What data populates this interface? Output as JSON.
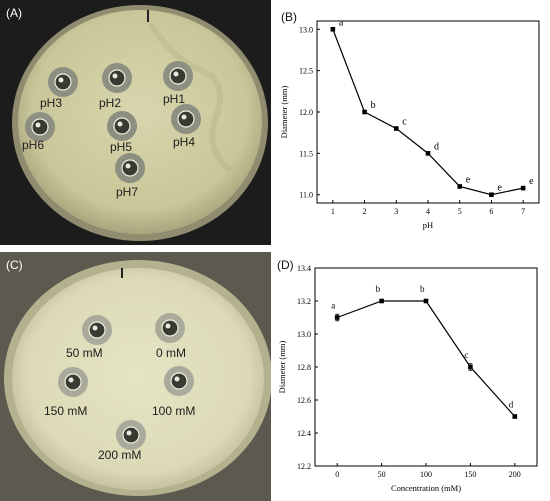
{
  "panels": {
    "a": {
      "label": "(A)",
      "wells": [
        "pH3",
        "pH2",
        "pH1",
        "pH6",
        "pH5",
        "pH4",
        "pH7"
      ]
    },
    "b": {
      "label": "(B)"
    },
    "c": {
      "label": "(C)",
      "wells": [
        "50 mM",
        "0 mM",
        "150 mM",
        "100 mM",
        "200 mM"
      ]
    },
    "d": {
      "label": "(D)"
    }
  },
  "chart_data": [
    {
      "type": "line",
      "panel": "B",
      "xlabel": "pH",
      "ylabel": "Diameter (mm)",
      "x": [
        1,
        2,
        3,
        4,
        5,
        6,
        7
      ],
      "series": [
        {
          "values": [
            13.0,
            12.0,
            11.8,
            11.5,
            11.1,
            11.0,
            11.08
          ]
        }
      ],
      "significance_letters": [
        "a",
        "b",
        "c",
        "d",
        "e",
        "e",
        "e"
      ],
      "xlim": [
        0.5,
        7.5
      ],
      "ylim": [
        10.9,
        13.1
      ],
      "xticks": [
        "1",
        "2",
        "3",
        "4",
        "5",
        "6",
        "7"
      ],
      "yticks": [
        "11.0",
        "11.5",
        "12.0",
        "12.5",
        "13.0"
      ],
      "grid": false,
      "color": "#000000"
    },
    {
      "type": "line",
      "panel": "D",
      "xlabel": "Concentration (mM)",
      "ylabel": "Diameter (mm)",
      "x": [
        0,
        50,
        100,
        150,
        200
      ],
      "series": [
        {
          "values": [
            13.1,
            13.2,
            13.2,
            12.8,
            12.5
          ],
          "errors": [
            0.02,
            0.0,
            0.01,
            0.02,
            0.01
          ]
        }
      ],
      "significance_letters": [
        "a",
        "b",
        "b",
        "c",
        "d"
      ],
      "xlim": [
        -25,
        225
      ],
      "ylim": [
        12.2,
        13.4
      ],
      "xticks": [
        "0",
        "50",
        "100",
        "150",
        "200"
      ],
      "yticks": [
        "12.2",
        "12.4",
        "12.6",
        "12.8",
        "13.0",
        "13.2",
        "13.4"
      ],
      "grid": false,
      "color": "#000000"
    }
  ]
}
